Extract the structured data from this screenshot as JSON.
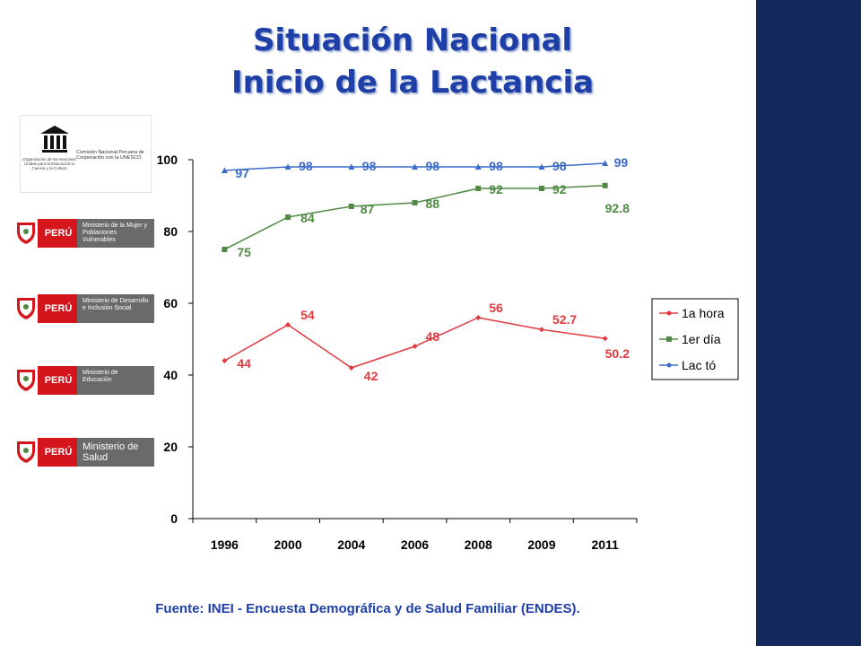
{
  "title": {
    "line1": "Situación Nacional",
    "line2": "Inicio de la Lactancia"
  },
  "logos": {
    "unesco": {
      "small_text": "Organización de las Naciones Unidas para la Educación la Ciencia y la Cultura",
      "commission": "Comisión Nacional Peruana de Cooperación con la UNESCO"
    },
    "country": "PERÚ",
    "ministries": [
      "Ministerio de la Mujer y Poblaciones Vulnerables",
      "Ministerio de Desarrollo e Inclusión Social",
      "Ministerio de Educación",
      "Ministerio de Salud"
    ]
  },
  "chart_data": {
    "type": "line",
    "categories": [
      "1996",
      "2000",
      "2004",
      "2006",
      "2008",
      "2009",
      "2011"
    ],
    "ylim": [
      0,
      100
    ],
    "yticks": [
      0,
      20,
      40,
      60,
      80,
      100
    ],
    "legend_position": "right",
    "series": [
      {
        "name": "1a hora",
        "color": "#e03a3e",
        "values": [
          44,
          54,
          42,
          48,
          56,
          52.7,
          50.2
        ],
        "labels": [
          "44",
          "54",
          "42",
          "48",
          "56",
          "52.7",
          "50.2"
        ]
      },
      {
        "name": "1er día",
        "color": "#4f8a44",
        "values": [
          75,
          84,
          87,
          88,
          92,
          92,
          92.8
        ],
        "labels": [
          "75",
          "84",
          "87",
          "88",
          "92",
          "92",
          "92.8"
        ]
      },
      {
        "name": "Lactó",
        "color": "#3b6bc9",
        "values": [
          97,
          98,
          98,
          98,
          98,
          98,
          99
        ],
        "labels": [
          "97",
          "98",
          "98",
          "98",
          "98",
          "98",
          "99"
        ]
      }
    ]
  },
  "legend_labels": [
    "1a hora",
    "1er día",
    "Lac tó"
  ],
  "source": "Fuente: INEI - Encuesta Demográfica y de Salud Familiar (ENDES)."
}
